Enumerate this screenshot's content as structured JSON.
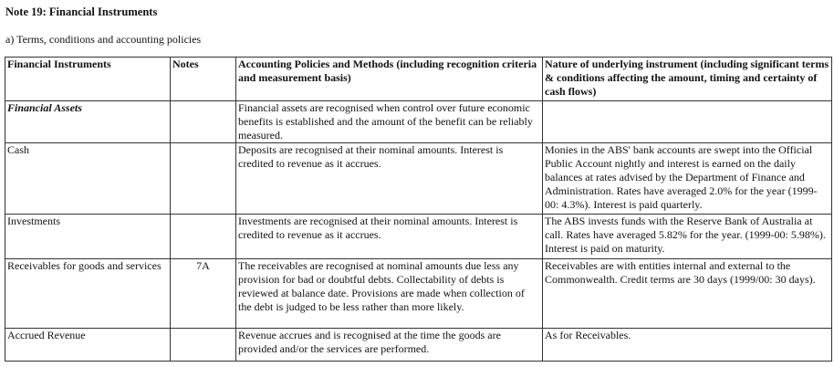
{
  "title": "Note 19: Financial Instruments",
  "subtitle": "a) Terms, conditions and accounting policies",
  "headers": [
    "Financial Instruments",
    "Notes",
    "Accounting Policies and Methods (including recognition criteria and measurement basis)",
    "Nature of underlying instrument (including significant terms & conditions affecting the amount, timing and certainty of cash flows)"
  ],
  "rows": [
    {
      "instrument": "Financial Assets",
      "notes": "",
      "policy": "Financial assets are recognised when control over future economic benefits is established and the amount of the benefit can be reliably measured.",
      "nature": ""
    },
    {
      "instrument": "Cash",
      "notes": "",
      "policy": "Deposits are recognised at their nominal amounts. Interest is credited to revenue as it accrues.",
      "nature": "Monies in the ABS' bank accounts are swept into the Official Public Account nightly and interest is earned on the daily balances at rates advised by the Department of Finance and Administration. Rates have averaged 2.0% for the year (1999-00: 4.3%). Interest is paid quarterly."
    },
    {
      "instrument": "Investments",
      "notes": "",
      "policy": "Investments are recognised at their nominal amounts. Interest is credited to revenue as it accrues.",
      "nature": "The ABS invests funds with the Reserve Bank of Australia at call. Rates have averaged 5.82% for the year. (1999-00: 5.98%). Interest is paid on maturity."
    },
    {
      "instrument": "Receivables for goods and services",
      "notes": "7A",
      "policy": "The receivables are recognised at nominal amounts due less any provision for bad or doubtful debts. Collectability of debts is reviewed at balance date. Provisions are made when collection of the debt is judged to be less rather than more likely.",
      "nature": "Receivables are with entities internal and external to the Commonwealth. Credit terms are 30 days (1999/00: 30 days)."
    },
    {
      "instrument": "Accrued Revenue",
      "notes": "",
      "policy": "Revenue accrues and is recognised at the time the goods are provided and/or the services are performed.",
      "nature": "As for Receivables."
    }
  ]
}
